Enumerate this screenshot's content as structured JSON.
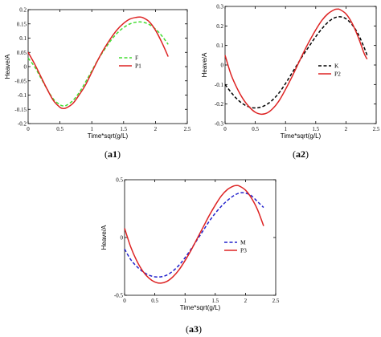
{
  "chart_data": [
    {
      "type": "line",
      "caption": "(a1)",
      "xlabel": "Time*sqrt(g/L)",
      "ylabel": "Heave/A",
      "xlim": [
        0,
        2.5
      ],
      "ylim": [
        -0.2,
        0.2
      ],
      "xticks": [
        "0",
        "0.5",
        "1",
        "1.5",
        "2",
        "2.5"
      ],
      "yticks": [
        "-0.2",
        "-0.15",
        "-0.1",
        "-0.05",
        "0",
        "0.05",
        "0.1",
        "0.15",
        "0.2"
      ],
      "legend_position": "center-right",
      "series": [
        {
          "name": "F",
          "color": "#44dd33",
          "dash": "dashed",
          "x": [
            0,
            0.1,
            0.2,
            0.3,
            0.4,
            0.5,
            0.55,
            0.6,
            0.7,
            0.8,
            0.9,
            1.0,
            1.1,
            1.2,
            1.3,
            1.4,
            1.5,
            1.6,
            1.7,
            1.8,
            1.9,
            2.0,
            2.1,
            2.2
          ],
          "y": [
            0.03,
            0.0,
            -0.04,
            -0.08,
            -0.115,
            -0.134,
            -0.138,
            -0.136,
            -0.12,
            -0.092,
            -0.055,
            -0.015,
            0.025,
            0.06,
            0.092,
            0.118,
            0.137,
            0.15,
            0.156,
            0.156,
            0.148,
            0.132,
            0.108,
            0.078
          ]
        },
        {
          "name": "P1",
          "color": "#dd2222",
          "dash": "solid",
          "x": [
            0,
            0.1,
            0.2,
            0.3,
            0.4,
            0.5,
            0.55,
            0.6,
            0.7,
            0.8,
            0.9,
            1.0,
            1.1,
            1.2,
            1.3,
            1.4,
            1.5,
            1.6,
            1.7,
            1.75,
            1.8,
            1.9,
            2.0,
            2.1,
            2.2
          ],
          "y": [
            0.05,
            0.01,
            -0.035,
            -0.08,
            -0.12,
            -0.143,
            -0.147,
            -0.145,
            -0.13,
            -0.1,
            -0.065,
            -0.02,
            0.025,
            0.065,
            0.1,
            0.13,
            0.152,
            0.167,
            0.173,
            0.174,
            0.172,
            0.158,
            0.128,
            0.085,
            0.035
          ]
        }
      ]
    },
    {
      "type": "line",
      "caption": "(a2)",
      "xlabel": "Time*sqrt(g/L)",
      "ylabel": "Heave/A",
      "xlim": [
        0,
        2.5
      ],
      "ylim": [
        -0.3,
        0.3
      ],
      "xticks": [
        "0",
        "0.5",
        "1",
        "1.5",
        "2",
        "2.5"
      ],
      "yticks": [
        "-0.3",
        "-0.2",
        "-0.1",
        "0",
        "0.1",
        "0.2",
        "0.3"
      ],
      "legend_position": "center-right",
      "series": [
        {
          "name": "K",
          "color": "#000000",
          "dash": "dashed",
          "x": [
            0,
            0.1,
            0.2,
            0.3,
            0.4,
            0.5,
            0.6,
            0.7,
            0.8,
            0.9,
            1.0,
            1.1,
            1.2,
            1.3,
            1.4,
            1.5,
            1.6,
            1.7,
            1.8,
            1.9,
            2.0,
            2.1,
            2.2,
            2.3,
            2.35
          ],
          "y": [
            -0.1,
            -0.14,
            -0.175,
            -0.2,
            -0.215,
            -0.22,
            -0.215,
            -0.2,
            -0.175,
            -0.14,
            -0.095,
            -0.045,
            0.005,
            0.055,
            0.1,
            0.145,
            0.185,
            0.218,
            0.24,
            0.247,
            0.237,
            0.207,
            0.16,
            0.09,
            0.05
          ]
        },
        {
          "name": "P2",
          "color": "#dd2222",
          "dash": "solid",
          "x": [
            0,
            0.1,
            0.2,
            0.3,
            0.4,
            0.5,
            0.6,
            0.7,
            0.8,
            0.9,
            1.0,
            1.1,
            1.2,
            1.3,
            1.4,
            1.5,
            1.6,
            1.7,
            1.8,
            1.85,
            1.9,
            2.0,
            2.1,
            2.2,
            2.3,
            2.35
          ],
          "y": [
            0.05,
            -0.05,
            -0.12,
            -0.175,
            -0.215,
            -0.242,
            -0.252,
            -0.245,
            -0.22,
            -0.18,
            -0.125,
            -0.065,
            0.0,
            0.065,
            0.125,
            0.18,
            0.228,
            0.262,
            0.282,
            0.286,
            0.284,
            0.262,
            0.215,
            0.145,
            0.06,
            0.03
          ]
        }
      ]
    },
    {
      "type": "line",
      "caption": "(a3)",
      "xlabel": "Time*sqrt(g/L)",
      "ylabel": "Heave/A",
      "xlim": [
        0,
        2.5
      ],
      "ylim": [
        -0.5,
        0.5
      ],
      "xticks": [
        "0",
        "0.5",
        "1",
        "1.5",
        "2",
        "2.5"
      ],
      "yticks": [
        "-0.5",
        "0",
        "0.5"
      ],
      "legend_position": "center-right",
      "series": [
        {
          "name": "M",
          "color": "#2222cc",
          "dash": "dashed",
          "x": [
            0,
            0.1,
            0.2,
            0.3,
            0.4,
            0.5,
            0.6,
            0.7,
            0.8,
            0.9,
            1.0,
            1.1,
            1.2,
            1.3,
            1.4,
            1.5,
            1.6,
            1.7,
            1.8,
            1.9,
            2.0,
            2.1,
            2.2,
            2.3
          ],
          "y": [
            -0.1,
            -0.19,
            -0.25,
            -0.295,
            -0.325,
            -0.34,
            -0.34,
            -0.325,
            -0.29,
            -0.24,
            -0.175,
            -0.1,
            -0.02,
            0.06,
            0.14,
            0.21,
            0.27,
            0.32,
            0.36,
            0.385,
            0.385,
            0.36,
            0.31,
            0.26
          ]
        },
        {
          "name": "P3",
          "color": "#dd2222",
          "dash": "solid",
          "x": [
            0,
            0.1,
            0.2,
            0.3,
            0.4,
            0.5,
            0.6,
            0.7,
            0.8,
            0.9,
            1.0,
            1.1,
            1.2,
            1.3,
            1.4,
            1.5,
            1.6,
            1.7,
            1.8,
            1.85,
            1.9,
            2.0,
            2.1,
            2.2,
            2.3
          ],
          "y": [
            0.08,
            -0.08,
            -0.2,
            -0.29,
            -0.35,
            -0.385,
            -0.395,
            -0.38,
            -0.34,
            -0.28,
            -0.2,
            -0.11,
            -0.01,
            0.09,
            0.19,
            0.28,
            0.36,
            0.415,
            0.445,
            0.45,
            0.445,
            0.41,
            0.34,
            0.24,
            0.1
          ]
        }
      ]
    }
  ]
}
